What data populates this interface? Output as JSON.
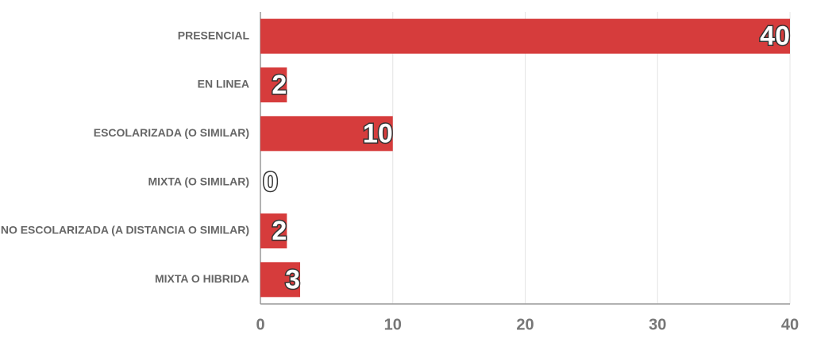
{
  "chart_data": {
    "type": "bar",
    "orientation": "horizontal",
    "categories": [
      "PRESENCIAL",
      "EN LINEA",
      "ESCOLARIZADA (O SIMILAR)",
      "MIXTA (O SIMILAR)",
      "NO ESCOLARIZADA (A DISTANCIA O SIMILAR)",
      "MIXTA O HIBRIDA"
    ],
    "values": [
      40,
      2,
      10,
      0,
      2,
      3
    ],
    "color": "#d63c3c",
    "xlim": [
      0,
      40
    ],
    "xticks": [
      0,
      10,
      20,
      30,
      40
    ],
    "grid": true
  }
}
